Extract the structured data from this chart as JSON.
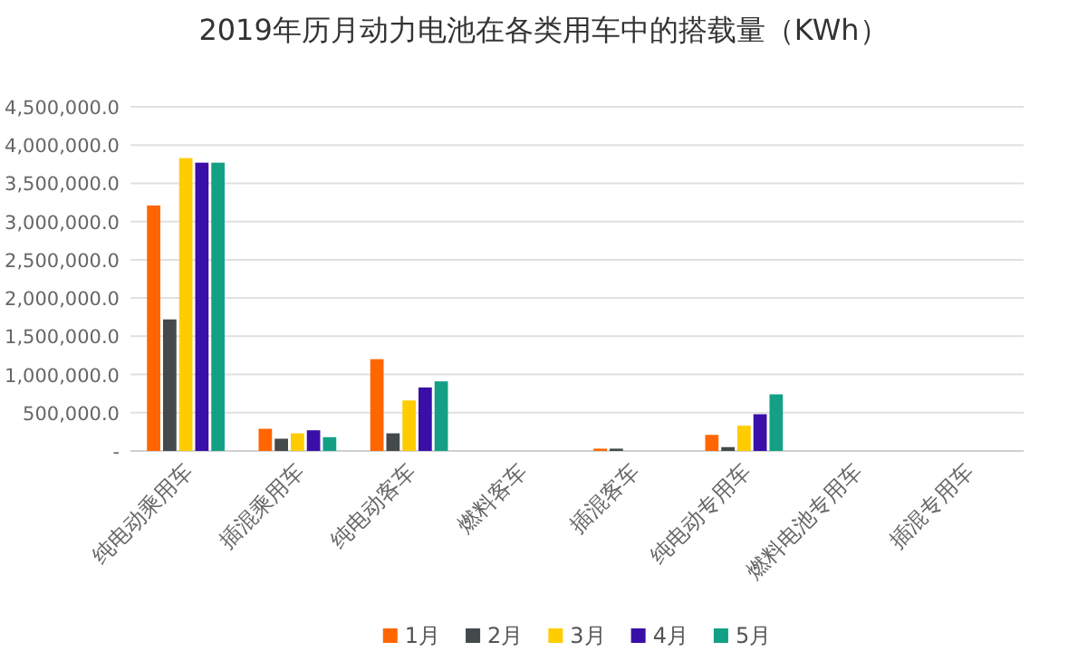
{
  "chart_data": {
    "type": "bar",
    "title": "2019年历月动力电池在各类用车中的搭载量（KWh）",
    "categories": [
      "纯电动乘用车",
      "插混乘用车",
      "纯电动客车",
      "燃料客车",
      "插混客车",
      "纯电动专用车",
      "燃料电池专用车",
      "插混专用车"
    ],
    "series": [
      {
        "name": "1月",
        "color": "#ff6600",
        "values": [
          3210000,
          290000,
          1200000,
          0,
          30000,
          210000,
          0,
          0
        ]
      },
      {
        "name": "2月",
        "color": "#44494c",
        "values": [
          1720000,
          160000,
          230000,
          0,
          30000,
          50000,
          0,
          0
        ]
      },
      {
        "name": "3月",
        "color": "#ffcc00",
        "values": [
          3830000,
          230000,
          660000,
          0,
          0,
          330000,
          0,
          0
        ]
      },
      {
        "name": "4月",
        "color": "#3a0fa8",
        "values": [
          3770000,
          270000,
          830000,
          0,
          0,
          480000,
          0,
          0
        ]
      },
      {
        "name": "5月",
        "color": "#13a085",
        "values": [
          3770000,
          180000,
          910000,
          0,
          0,
          740000,
          0,
          0
        ]
      }
    ],
    "ylim": [
      0,
      4500000
    ],
    "yticks": [
      {
        "value": 0,
        "label": "-"
      },
      {
        "value": 500000,
        "label": "500,000.0"
      },
      {
        "value": 1000000,
        "label": "1,000,000.0"
      },
      {
        "value": 1500000,
        "label": "1,500,000.0"
      },
      {
        "value": 2000000,
        "label": "2,000,000.0"
      },
      {
        "value": 2500000,
        "label": "2,500,000.0"
      },
      {
        "value": 3000000,
        "label": "3,000,000.0"
      },
      {
        "value": 3500000,
        "label": "3,500,000.0"
      },
      {
        "value": 4000000,
        "label": "4,000,000.0"
      },
      {
        "value": 4500000,
        "label": "4,500,000.0"
      }
    ],
    "grid": "y",
    "legend": "bottom"
  }
}
